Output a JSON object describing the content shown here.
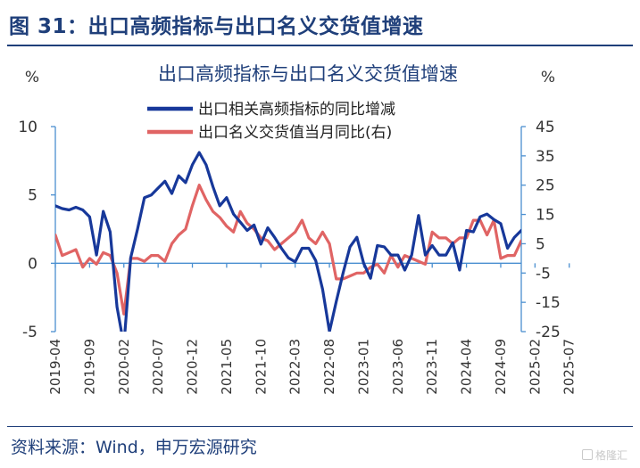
{
  "header": {
    "title": "图 31：出口高频指标与出口名义交货值增速"
  },
  "footer": {
    "source": "资料来源：Wind，申万宏源研究"
  },
  "watermark": {
    "text": "格隆汇"
  },
  "colors": {
    "accent": "#1f3f7a",
    "series_blue": "#17389a",
    "series_red": "#e06464",
    "axis": "#4a8fd0",
    "tick_text": "#333333"
  },
  "chart_data": {
    "type": "line",
    "title": "出口高频指标与出口名义交货值增速",
    "left_unit": "%",
    "right_unit": "%",
    "left_axis": {
      "ylim": [
        -5,
        10
      ],
      "ticks": [
        10,
        5,
        0,
        -5
      ]
    },
    "right_axis": {
      "ylim": [
        -25,
        45
      ],
      "ticks": [
        45,
        35,
        25,
        15,
        5,
        -5,
        -15,
        -25
      ]
    },
    "x_tick_labels": [
      "2019-04",
      "2019-09",
      "2020-02",
      "2020-07",
      "2020-12",
      "2021-05",
      "2021-10",
      "2022-03",
      "2022-08",
      "2023-01",
      "2023-06",
      "2023-11",
      "2024-04",
      "2024-09",
      "2025-02",
      "2025-07"
    ],
    "x_tick_step_months": 5,
    "legend": [
      "出口相关高频指标的同比增减",
      "出口名义交货值当月同比(右)"
    ],
    "series": [
      {
        "name": "出口相关高频指标的同比增减",
        "axis": "left",
        "color": "#17389a",
        "values": [
          4.2,
          4.0,
          3.9,
          4.1,
          3.9,
          3.4,
          0.6,
          3.8,
          2.3,
          -3.2,
          -6.0,
          0.4,
          2.5,
          4.8,
          5.0,
          5.5,
          6.0,
          5.1,
          6.4,
          5.9,
          7.2,
          8.1,
          7.2,
          5.6,
          4.2,
          4.8,
          3.6,
          3.0,
          2.4,
          2.8,
          1.4,
          2.6,
          1.9,
          1.1,
          0.4,
          0.1,
          1.1,
          1.1,
          0.2,
          -1.9,
          -5.0,
          -2.8,
          -0.7,
          1.2,
          1.9,
          0.0,
          -1.1,
          1.3,
          1.2,
          0.6,
          0.6,
          -0.5,
          0.6,
          3.5,
          0.6,
          1.3,
          0.6,
          0.6,
          1.5,
          -0.5,
          2.4,
          2.3,
          3.4,
          3.6,
          3.2,
          2.9,
          1.1,
          1.9,
          2.4
        ]
      },
      {
        "name": "出口名义交货值当月同比(右)",
        "axis": "right",
        "color": "#e06464",
        "values": [
          8,
          1,
          2,
          3,
          -3,
          0,
          -2,
          2,
          1,
          -5,
          -19,
          0,
          0,
          -1,
          1,
          1,
          -1,
          5,
          8,
          10,
          18,
          25,
          20,
          16,
          14,
          11,
          9,
          16,
          12,
          10,
          7,
          6,
          3,
          5,
          7,
          9,
          13,
          7,
          5,
          9,
          5,
          -7,
          -7,
          -6,
          -5,
          -5,
          -3,
          -2,
          -5,
          1,
          -3,
          1,
          0,
          -1,
          -2,
          9,
          7,
          7,
          5,
          7,
          7,
          13,
          13,
          8,
          13,
          0,
          1,
          1,
          6
        ]
      }
    ]
  }
}
